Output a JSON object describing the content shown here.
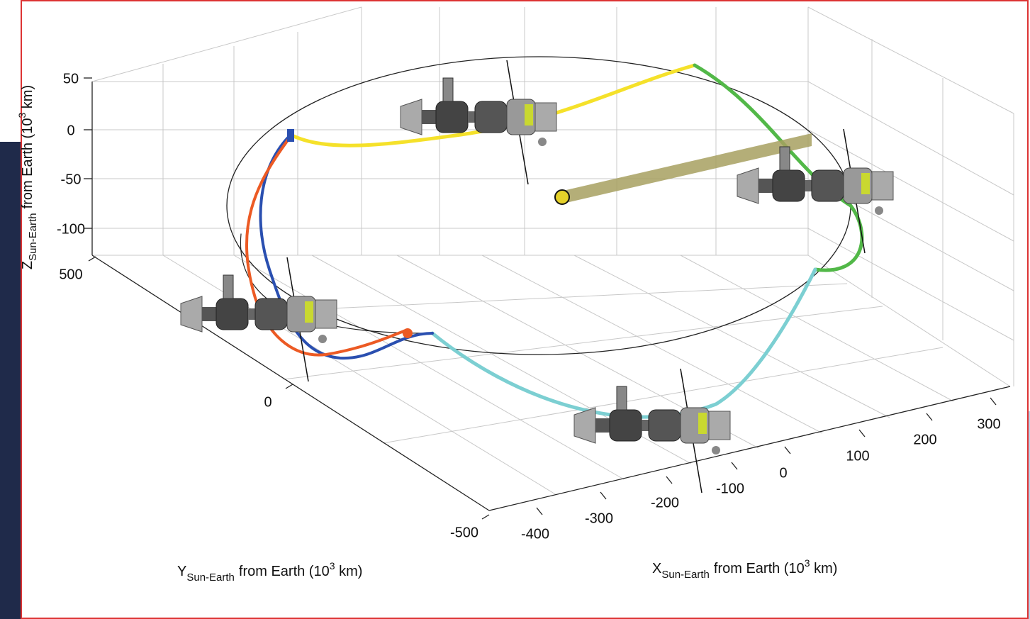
{
  "axes": {
    "z": {
      "symbol": "Z",
      "subscript": "Sun-Earth",
      "text": "from Earth (10",
      "superscript": "3",
      "end": " km)",
      "ticks": [
        50,
        0,
        -50,
        -100
      ]
    },
    "y": {
      "symbol": "Y",
      "subscript": "Sun-Earth",
      "text": "from Earth (10",
      "superscript": "3",
      "end": " km)",
      "ticks": [
        500,
        0,
        -500
      ]
    },
    "x": {
      "symbol": "X",
      "subscript": "Sun-Earth",
      "text": "from Earth (10",
      "superscript": "3",
      "end": " km)",
      "ticks": [
        -400,
        -300,
        -200,
        -100,
        0,
        100,
        200,
        300
      ]
    }
  }
}
